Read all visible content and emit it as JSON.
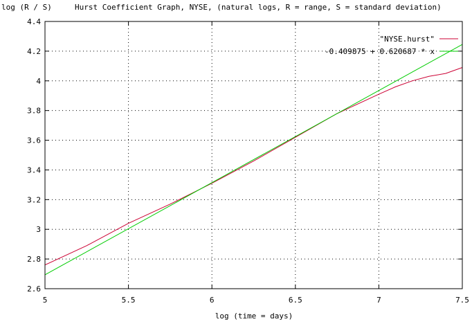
{
  "chart_data": {
    "type": "line",
    "title": "Hurst Coefficient Graph, NYSE, (natural logs, R = range, S = standard deviation)",
    "xlabel": "log (time = days)",
    "ylabel": "log (R / S)",
    "xlim": [
      5,
      7.5
    ],
    "ylim": [
      2.6,
      4.4
    ],
    "xticks": [
      5,
      5.5,
      6,
      6.5,
      7,
      7.5
    ],
    "xtick_labels": [
      "5",
      "5.5",
      "6",
      "6.5",
      "7",
      "7.5"
    ],
    "yticks": [
      2.6,
      2.8,
      3,
      3.2,
      3.4,
      3.6,
      3.8,
      4,
      4.2,
      4.4
    ],
    "ytick_labels": [
      "2.6",
      "2.8",
      "3",
      "3.2",
      "3.4",
      "3.6",
      "3.8",
      "4",
      "4.2",
      "4.4"
    ],
    "grid": true,
    "legend_position": "top-right",
    "series": [
      {
        "name": "\"NYSE.hurst\"",
        "color": "#cc0033",
        "x": [
          5.0,
          5.25,
          5.5,
          5.75,
          6.0,
          6.25,
          6.5,
          6.75,
          7.0,
          7.1,
          7.2,
          7.3,
          7.4,
          7.5
        ],
        "y": [
          2.76,
          2.89,
          3.04,
          3.17,
          3.31,
          3.46,
          3.62,
          3.78,
          3.91,
          3.96,
          4.0,
          4.03,
          4.05,
          4.09
        ]
      },
      {
        "name": "-0.409875 + 0.620687 * x",
        "color": "#00cc00",
        "x": [
          5.0,
          7.5
        ],
        "y": [
          2.6936,
          4.2453
        ]
      }
    ]
  }
}
